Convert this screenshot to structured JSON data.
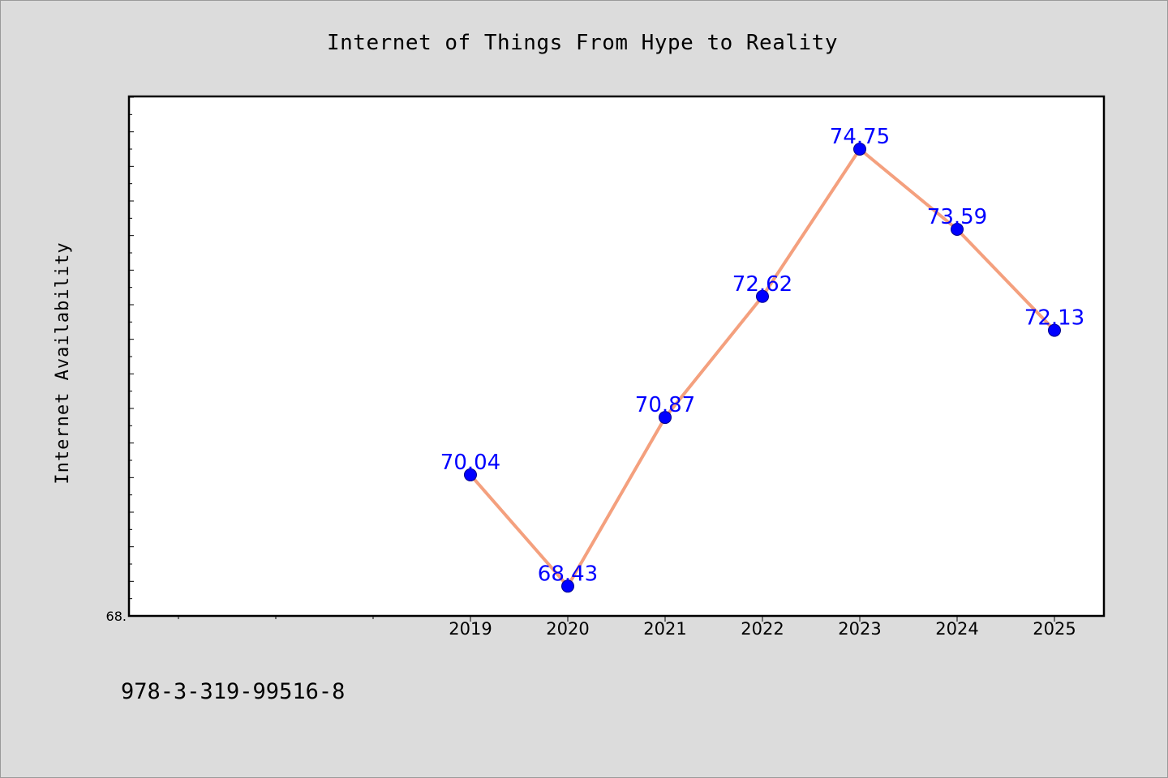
{
  "chart_data": {
    "type": "line",
    "title": "Internet of Things From Hype to Reality",
    "xlabel": "",
    "ylabel": "Internet Availability",
    "categories": [
      "2019",
      "2020",
      "2021",
      "2022",
      "2023",
      "2024",
      "2025"
    ],
    "values": [
      70.04,
      68.43,
      70.87,
      72.62,
      74.75,
      73.59,
      72.13
    ],
    "data_labels": [
      "70.04",
      "68.43",
      "70.87",
      "72.62",
      "74.75",
      "73.59",
      "72.13"
    ],
    "x_range": [
      2015.5,
      2025.5
    ],
    "ylim": [
      68.0,
      75.5
    ],
    "y_tick_label": "68.",
    "grid": false,
    "line_color": "#f4a07e",
    "marker_color": "#0000ff",
    "label_color": "#0000ff"
  },
  "footer": {
    "isbn": "978-3-319-99516-8"
  }
}
